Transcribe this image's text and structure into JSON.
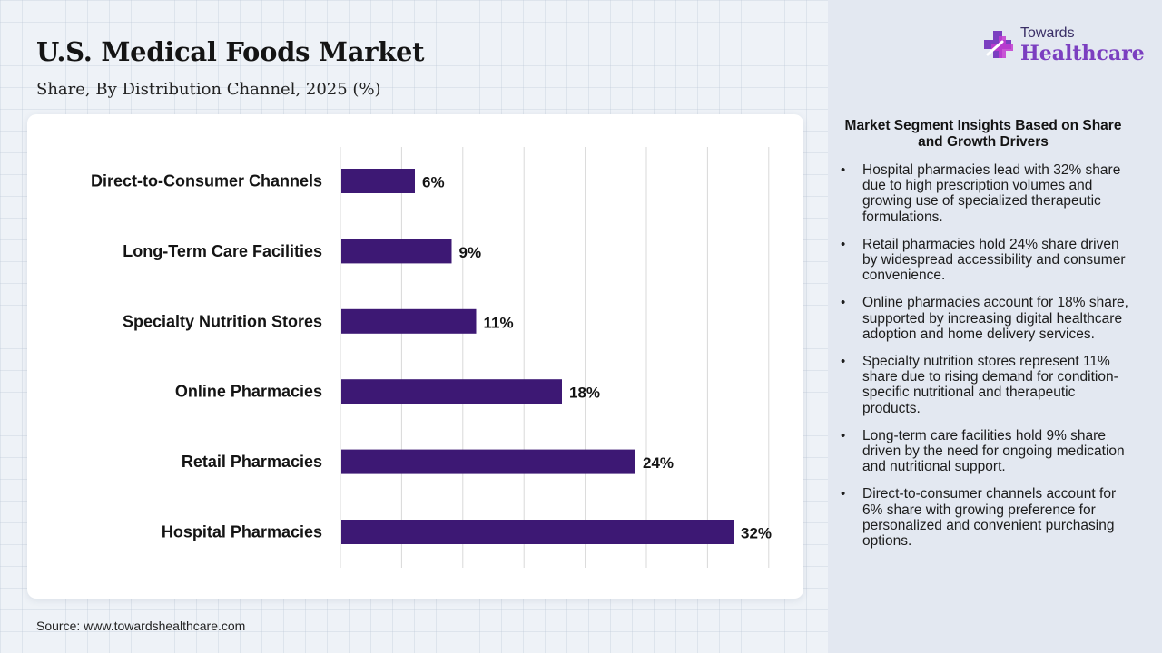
{
  "header": {
    "title": "U.S. Medical Foods Market",
    "subtitle": "Share, By Distribution Channel, 2025 (%)"
  },
  "logo": {
    "top_text": "Towards",
    "main_text": "Healthcare",
    "icon": "cross-logo-icon"
  },
  "colors": {
    "bar": "#3d1874",
    "accent_purple": "#7b3fc0",
    "accent_magenta": "#c23bd0",
    "grid": "#d9d9d9"
  },
  "chart_data": {
    "type": "bar",
    "orientation": "horizontal",
    "categories": [
      "Direct-to-Consumer Channels",
      "Long-Term Care Facilities",
      "Specialty Nutrition Stores",
      "Online Pharmacies",
      "Retail Pharmacies",
      "Hospital Pharmacies"
    ],
    "values": [
      6,
      9,
      11,
      18,
      24,
      32
    ],
    "value_labels": [
      "6%",
      "9%",
      "11%",
      "18%",
      "24%",
      "32%"
    ],
    "unit": "%",
    "xlim": [
      0,
      35
    ],
    "grid": true,
    "title": "U.S. Medical Foods Market",
    "subtitle": "Share, By Distribution Channel, 2025 (%)",
    "xlabel": "",
    "ylabel": ""
  },
  "source": "Source: www.towardshealthcare.com",
  "insights": {
    "title": "Market Segment Insights Based on Share and Growth Drivers",
    "bullet": "•",
    "items": [
      "Hospital pharmacies lead with 32% share due to high prescription volumes and growing use of specialized therapeutic formulations.",
      "Retail pharmacies hold 24% share driven by widespread accessibility and consumer convenience.",
      "Online pharmacies account for 18% share, supported by increasing digital healthcare adoption and home delivery services.",
      "Specialty nutrition stores represent 11% share due to rising demand for condition-specific nutritional and therapeutic products.",
      "Long-term care facilities hold 9% share driven by the need for ongoing medication and nutritional support.",
      "Direct-to-consumer channels account for 6% share with growing preference for personalized and convenient purchasing options."
    ]
  }
}
